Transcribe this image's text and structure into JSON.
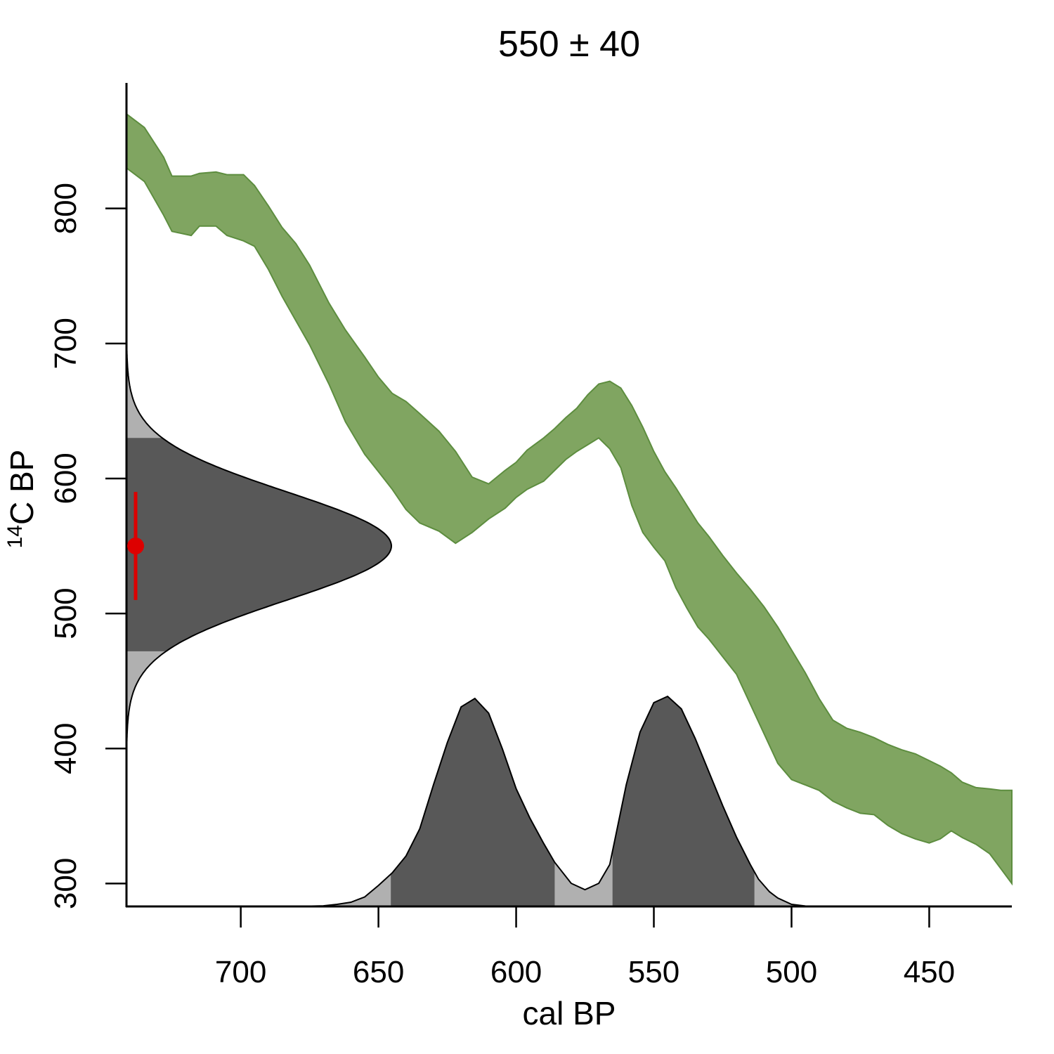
{
  "chart_data": {
    "type": "area",
    "title": "550 ± 40",
    "xlabel": "cal BP",
    "ylabel_sup": "14",
    "ylabel": "C BP",
    "xlim": [
      741.5,
      420
    ],
    "ylim": [
      283,
      893
    ],
    "x_ticks": [
      700,
      650,
      600,
      550,
      500,
      450
    ],
    "y_ticks": [
      300,
      400,
      500,
      600,
      700,
      800
    ],
    "date": {
      "mean": 550,
      "error": 40,
      "color": "#dd0000"
    },
    "colors": {
      "curve": "#80a561",
      "curve_edge": "#5d8d3f",
      "hpd": "#585858",
      "tail": "#b0b0b0"
    },
    "calibration_curve": {
      "x": [
        741.5,
        735,
        728,
        725,
        718,
        715,
        709,
        705,
        699,
        695,
        690,
        685,
        680,
        675,
        668,
        662,
        655,
        650,
        645,
        640,
        635,
        628,
        622,
        616,
        610,
        604,
        600,
        596,
        590,
        586,
        582,
        578,
        574,
        570,
        566,
        562,
        558,
        554,
        550,
        546,
        542,
        538,
        534,
        530,
        525,
        520,
        515,
        510,
        505,
        500,
        495,
        490,
        485,
        480,
        475,
        470,
        465,
        460,
        455,
        450,
        446,
        442,
        438,
        433,
        428,
        424,
        420
      ],
      "upper": [
        870,
        860,
        838,
        824,
        824,
        826,
        827,
        825,
        825,
        817,
        802,
        786,
        774,
        758,
        730,
        710,
        690,
        675,
        663,
        657,
        648,
        635,
        620,
        601,
        596,
        606,
        612,
        621,
        630,
        637,
        645,
        652,
        662,
        670,
        672,
        667,
        654,
        638,
        620,
        605,
        593,
        580,
        567,
        557,
        543,
        530,
        518,
        505,
        490,
        473,
        456,
        437,
        421,
        415,
        412,
        408,
        403,
        399,
        396,
        391,
        387,
        382,
        375,
        371,
        370,
        369,
        369
      ],
      "lower": [
        830,
        820,
        795,
        783,
        780,
        787,
        787,
        780,
        776,
        772,
        755,
        735,
        717,
        699,
        670,
        642,
        618,
        605,
        592,
        577,
        567,
        561,
        552,
        560,
        570,
        578,
        586,
        592,
        598,
        606,
        614,
        620,
        625,
        630,
        622,
        608,
        580,
        560,
        549,
        539,
        519,
        504,
        490,
        481,
        468,
        455,
        433,
        411,
        389,
        377,
        373,
        369,
        361,
        356,
        352,
        351,
        343,
        337,
        333,
        330,
        333,
        339,
        334,
        329,
        322,
        311,
        300
      ]
    },
    "calibrated_density": {
      "x": [
        741.5,
        680,
        670,
        665,
        660,
        655,
        650,
        645,
        640,
        635,
        630,
        625,
        620,
        615,
        610,
        605,
        600,
        595,
        590,
        586,
        580,
        575,
        570,
        566,
        560,
        555,
        550,
        545,
        540,
        535,
        530,
        525,
        520,
        515,
        512,
        508,
        505,
        500,
        495,
        420
      ],
      "y": [
        0,
        0,
        0.003,
        0.01,
        0.02,
        0.045,
        0.1,
        0.16,
        0.24,
        0.37,
        0.58,
        0.78,
        0.95,
        0.99,
        0.92,
        0.75,
        0.56,
        0.42,
        0.3,
        0.21,
        0.11,
        0.08,
        0.11,
        0.2,
        0.58,
        0.83,
        0.97,
        1.0,
        0.94,
        0.8,
        0.64,
        0.48,
        0.33,
        0.2,
        0.13,
        0.07,
        0.04,
        0.01,
        0.002,
        0
      ],
      "hpd_ranges": [
        [
          645.5,
          586
        ],
        [
          565,
          513.5
        ]
      ]
    },
    "radiocarbon_density": {
      "hpd_range": [
        472,
        630
      ]
    }
  }
}
